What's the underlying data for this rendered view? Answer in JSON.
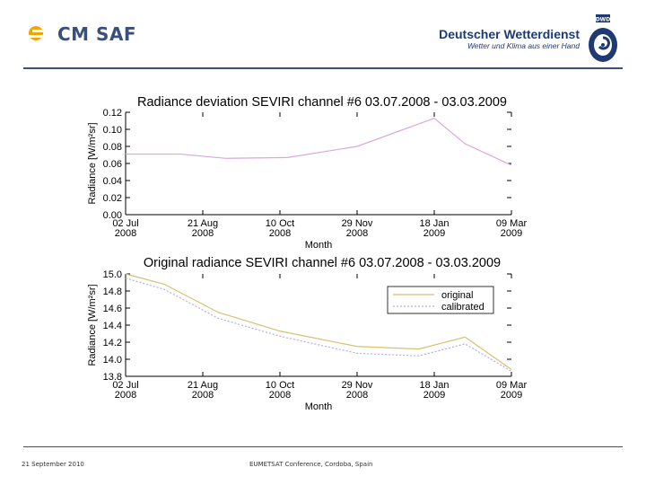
{
  "header": {
    "left_logo_text": "CM SAF",
    "right_logo_name": "Deutscher Wetterdienst",
    "right_logo_slogan": "Wetter und Klima aus einer Hand",
    "right_logo_badge": "DWD"
  },
  "footer": {
    "date": "21 September 2010",
    "conference": "EUMETSAT Conference, Cordoba, Spain"
  },
  "colors": {
    "brand_blue": "#3a4f7a",
    "dwd_blue": "#1f3a72",
    "sun_orange": "#f0a500",
    "deviation_line": "#d9a8d9",
    "original_line": "#d8c070",
    "calibrated_line": "#b0b0e8"
  },
  "chart_data": [
    {
      "type": "line",
      "title": "Radiance deviation SEVIRI channel #6 03.07.2008 - 03.03.2009",
      "xlabel": "Month",
      "ylabel": "Radiance [W/m²sr]",
      "ylim": [
        0.0,
        0.12
      ],
      "yticks": [
        "0.12",
        "0.10",
        "0.08",
        "0.06",
        "0.04",
        "0.02",
        "0.00"
      ],
      "xticks": [
        {
          "day": "02 Jul",
          "year": "2008"
        },
        {
          "day": "21 Aug",
          "year": "2008"
        },
        {
          "day": "10 Oct",
          "year": "2008"
        },
        {
          "day": "29 Nov",
          "year": "2008"
        },
        {
          "day": "18 Jan",
          "year": "2009"
        },
        {
          "day": "09 Mar",
          "year": "2009"
        }
      ],
      "legend": [],
      "series": [
        {
          "name": "deviation",
          "x": [
            0,
            0.7,
            1.3,
            2.1,
            3.0,
            4.0,
            4.4,
            5.0
          ],
          "y": [
            0.071,
            0.071,
            0.066,
            0.067,
            0.08,
            0.113,
            0.083,
            0.058
          ]
        }
      ]
    },
    {
      "type": "line",
      "title": "Original radiance SEVIRI channel #6 03.07.2008 - 03.03.2009",
      "xlabel": "Month",
      "ylabel": "Radiance [W/m²sr]",
      "ylim": [
        13.8,
        15.0
      ],
      "yticks": [
        "15.0",
        "14.8",
        "14.6",
        "14.4",
        "14.2",
        "14.0",
        "13.8"
      ],
      "xticks": [
        {
          "day": "02 Jul",
          "year": "2008"
        },
        {
          "day": "21 Aug",
          "year": "2008"
        },
        {
          "day": "10 Oct",
          "year": "2008"
        },
        {
          "day": "29 Nov",
          "year": "2008"
        },
        {
          "day": "18 Jan",
          "year": "2009"
        },
        {
          "day": "09 Mar",
          "year": "2009"
        }
      ],
      "legend": [
        "original",
        "calibrated"
      ],
      "legend_position": "top-right",
      "series": [
        {
          "name": "original",
          "x": [
            0,
            0.5,
            1.2,
            2.0,
            3.0,
            3.8,
            4.4,
            5.0
          ],
          "y": [
            15.0,
            14.88,
            14.55,
            14.33,
            14.15,
            14.12,
            14.26,
            13.88
          ]
        },
        {
          "name": "calibrated",
          "x": [
            0,
            0.5,
            1.2,
            2.0,
            3.0,
            3.8,
            4.4,
            5.0
          ],
          "y": [
            14.95,
            14.82,
            14.48,
            14.27,
            14.07,
            14.04,
            14.18,
            13.86
          ]
        }
      ]
    }
  ]
}
